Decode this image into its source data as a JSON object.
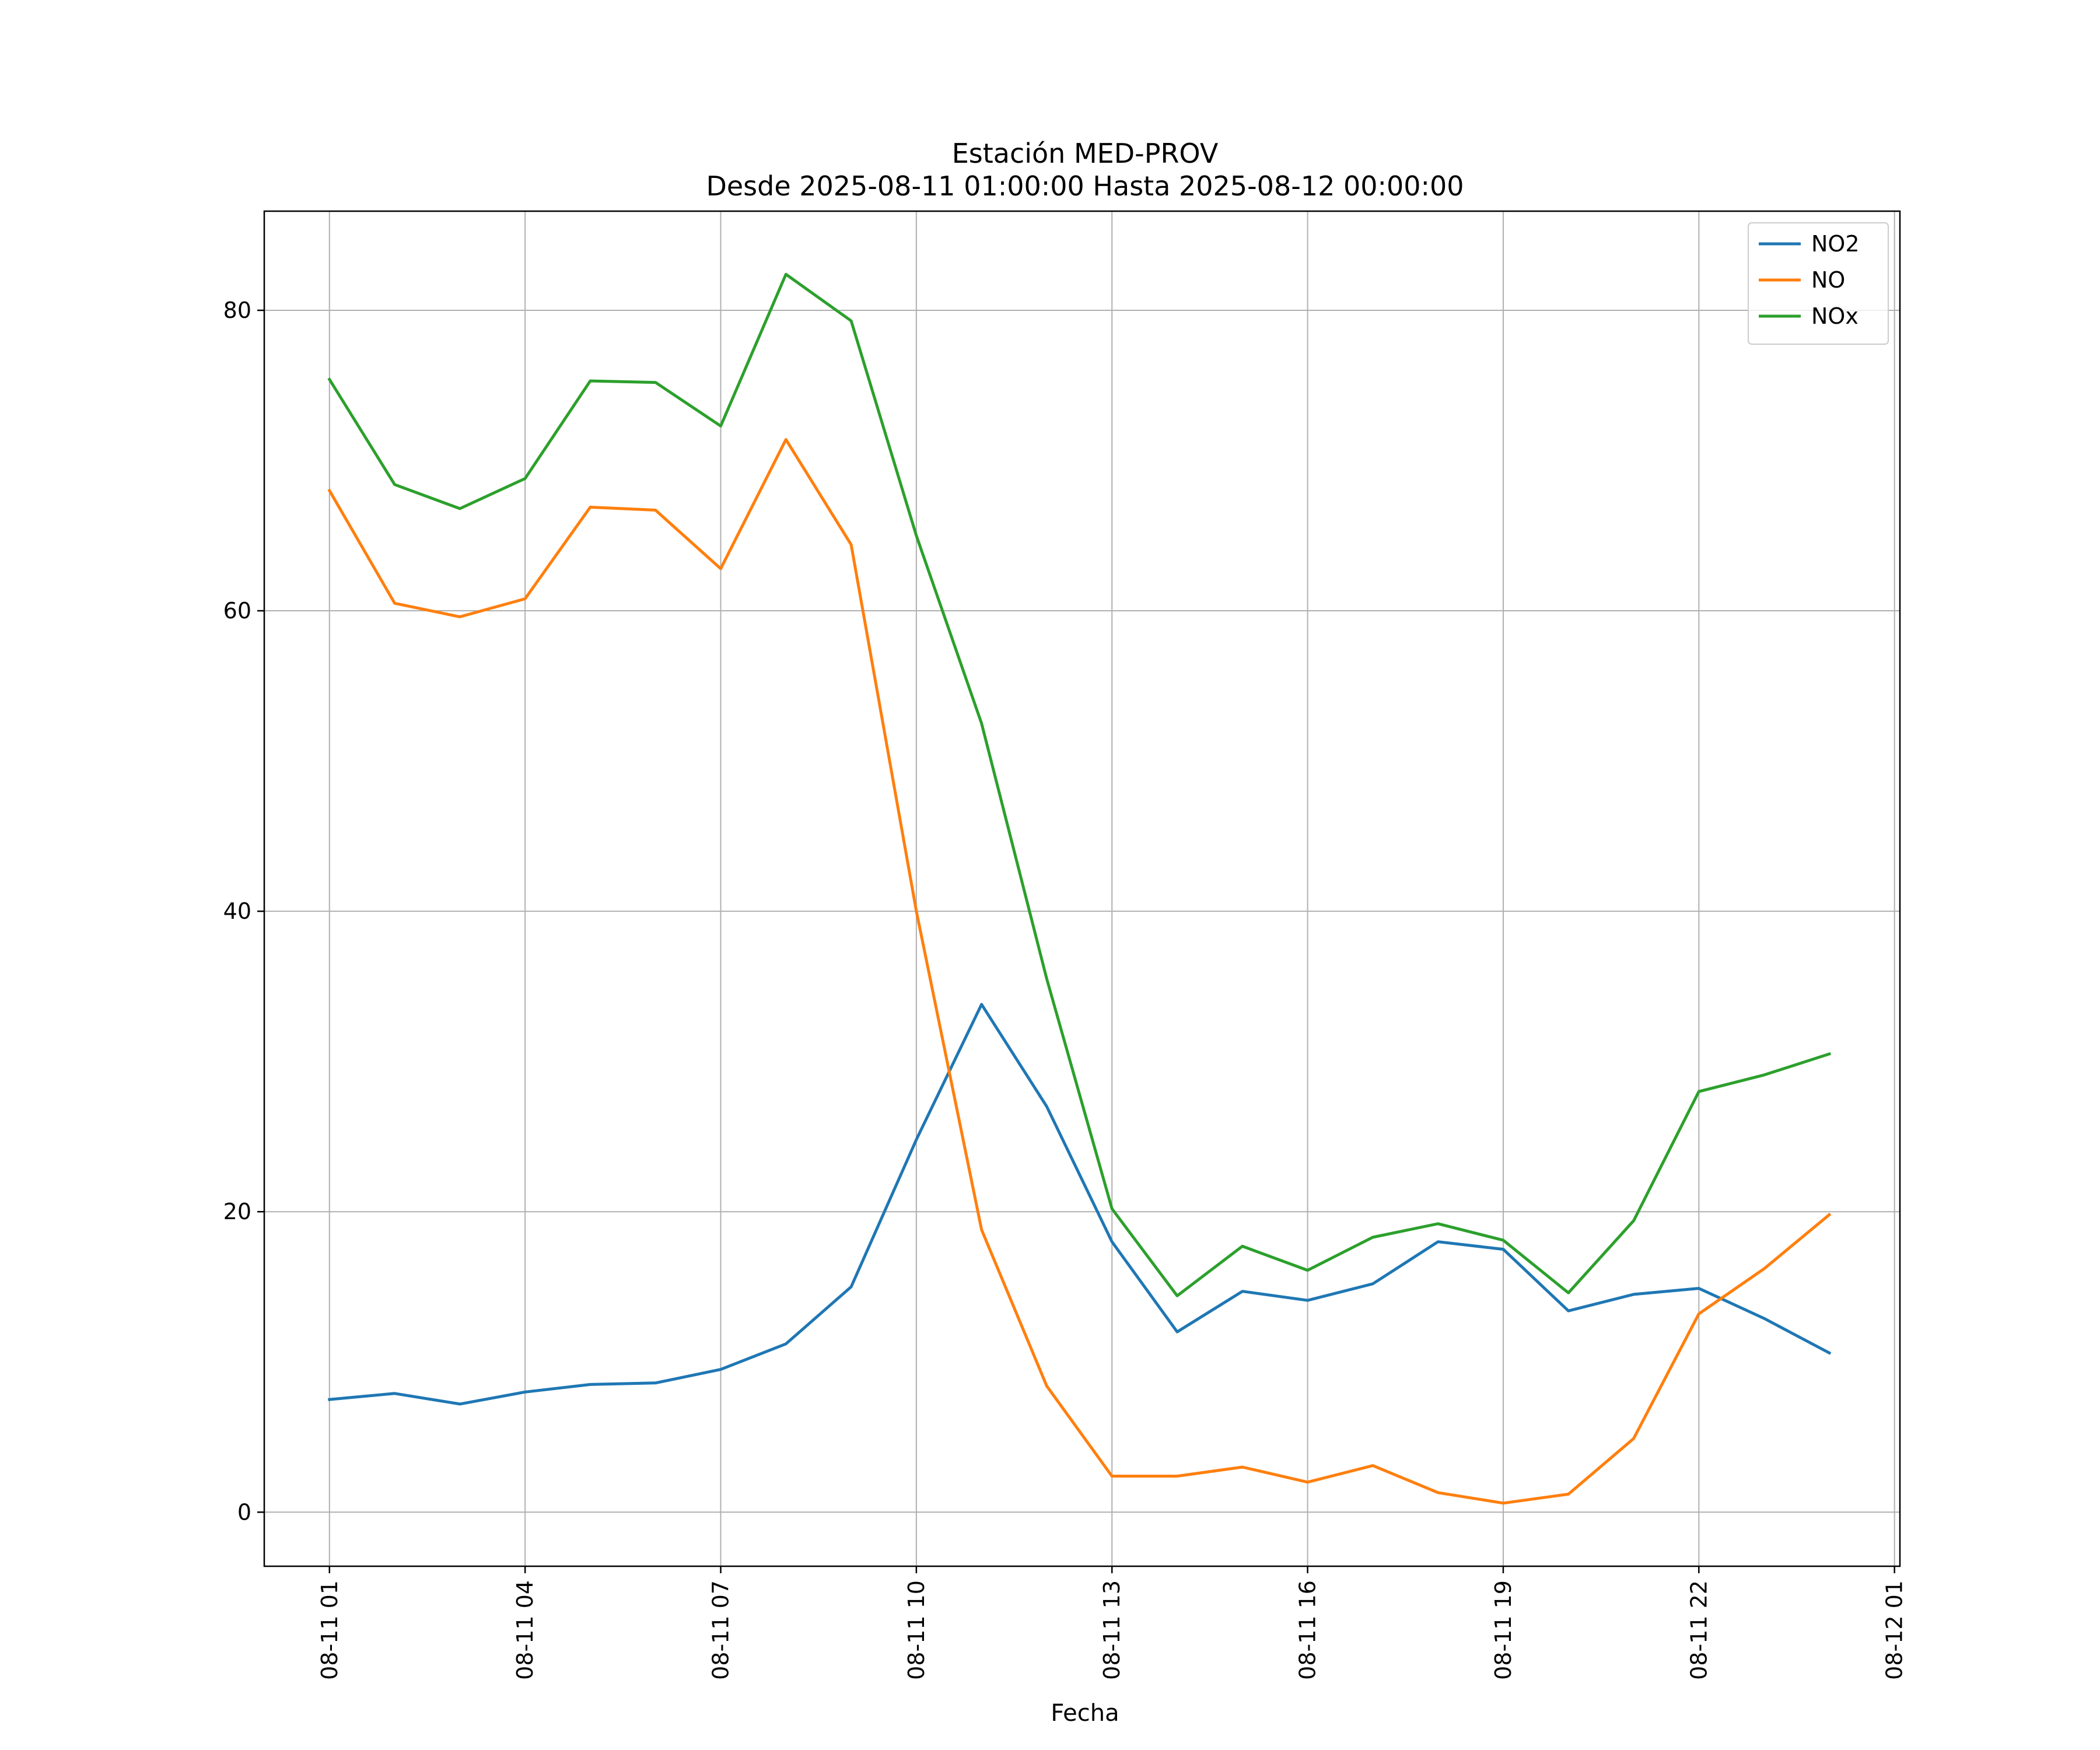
{
  "chart_data": {
    "type": "line",
    "title": "Estación MED-PROV",
    "subtitle": "Desde 2025-08-11 01:00:00 Hasta 2025-08-12 00:00:00",
    "xlabel": "Fecha",
    "ylabel": "",
    "x": [
      "2025-08-11 01:00",
      "2025-08-11 02:00",
      "2025-08-11 03:00",
      "2025-08-11 04:00",
      "2025-08-11 05:00",
      "2025-08-11 06:00",
      "2025-08-11 07:00",
      "2025-08-11 08:00",
      "2025-08-11 09:00",
      "2025-08-11 10:00",
      "2025-08-11 11:00",
      "2025-08-11 12:00",
      "2025-08-11 13:00",
      "2025-08-11 14:00",
      "2025-08-11 15:00",
      "2025-08-11 16:00",
      "2025-08-11 17:00",
      "2025-08-11 18:00",
      "2025-08-11 19:00",
      "2025-08-11 20:00",
      "2025-08-11 21:00",
      "2025-08-11 22:00",
      "2025-08-11 23:00",
      "2025-08-12 00:00"
    ],
    "xlim": [
      "2025-08-11 00:00",
      "2025-08-12 01:05"
    ],
    "xticks": [
      {
        "x": "2025-08-11 01:00",
        "label": "08-11 01"
      },
      {
        "x": "2025-08-11 04:00",
        "label": "08-11 04"
      },
      {
        "x": "2025-08-11 07:00",
        "label": "08-11 07"
      },
      {
        "x": "2025-08-11 10:00",
        "label": "08-11 10"
      },
      {
        "x": "2025-08-11 13:00",
        "label": "08-11 13"
      },
      {
        "x": "2025-08-11 16:00",
        "label": "08-11 16"
      },
      {
        "x": "2025-08-11 19:00",
        "label": "08-11 19"
      },
      {
        "x": "2025-08-11 22:00",
        "label": "08-11 22"
      },
      {
        "x": "2025-08-12 01:00",
        "label": "08-12 01"
      }
    ],
    "yticks": [
      0,
      20,
      40,
      60,
      80
    ],
    "ylim": [
      -3.6,
      86.6
    ],
    "grid": true,
    "legend": "top-right",
    "series": [
      {
        "name": "NO2",
        "color": "#1f77b4",
        "values": [
          7.5,
          7.9,
          7.2,
          8.0,
          8.5,
          8.6,
          9.5,
          11.2,
          15.0,
          24.8,
          33.8,
          27.0,
          18.0,
          12.0,
          14.7,
          14.1,
          15.2,
          18.0,
          17.5,
          13.4,
          14.5,
          14.9,
          12.9,
          10.6
        ]
      },
      {
        "name": "NO",
        "color": "#ff7f0e",
        "values": [
          68.0,
          60.5,
          59.6,
          60.8,
          66.9,
          66.7,
          62.8,
          71.4,
          64.4,
          40.0,
          18.8,
          8.4,
          2.4,
          2.4,
          3.0,
          2.0,
          3.1,
          1.3,
          0.6,
          1.2,
          4.9,
          13.2,
          16.2,
          19.8
        ]
      },
      {
        "name": "NOx",
        "color": "#2ca02c",
        "values": [
          75.4,
          68.4,
          66.8,
          68.8,
          75.3,
          75.2,
          72.3,
          82.4,
          79.3,
          65.0,
          52.5,
          35.5,
          20.2,
          14.4,
          17.7,
          16.1,
          18.3,
          19.2,
          18.1,
          14.6,
          19.4,
          28.0,
          29.1,
          30.5
        ]
      }
    ]
  }
}
